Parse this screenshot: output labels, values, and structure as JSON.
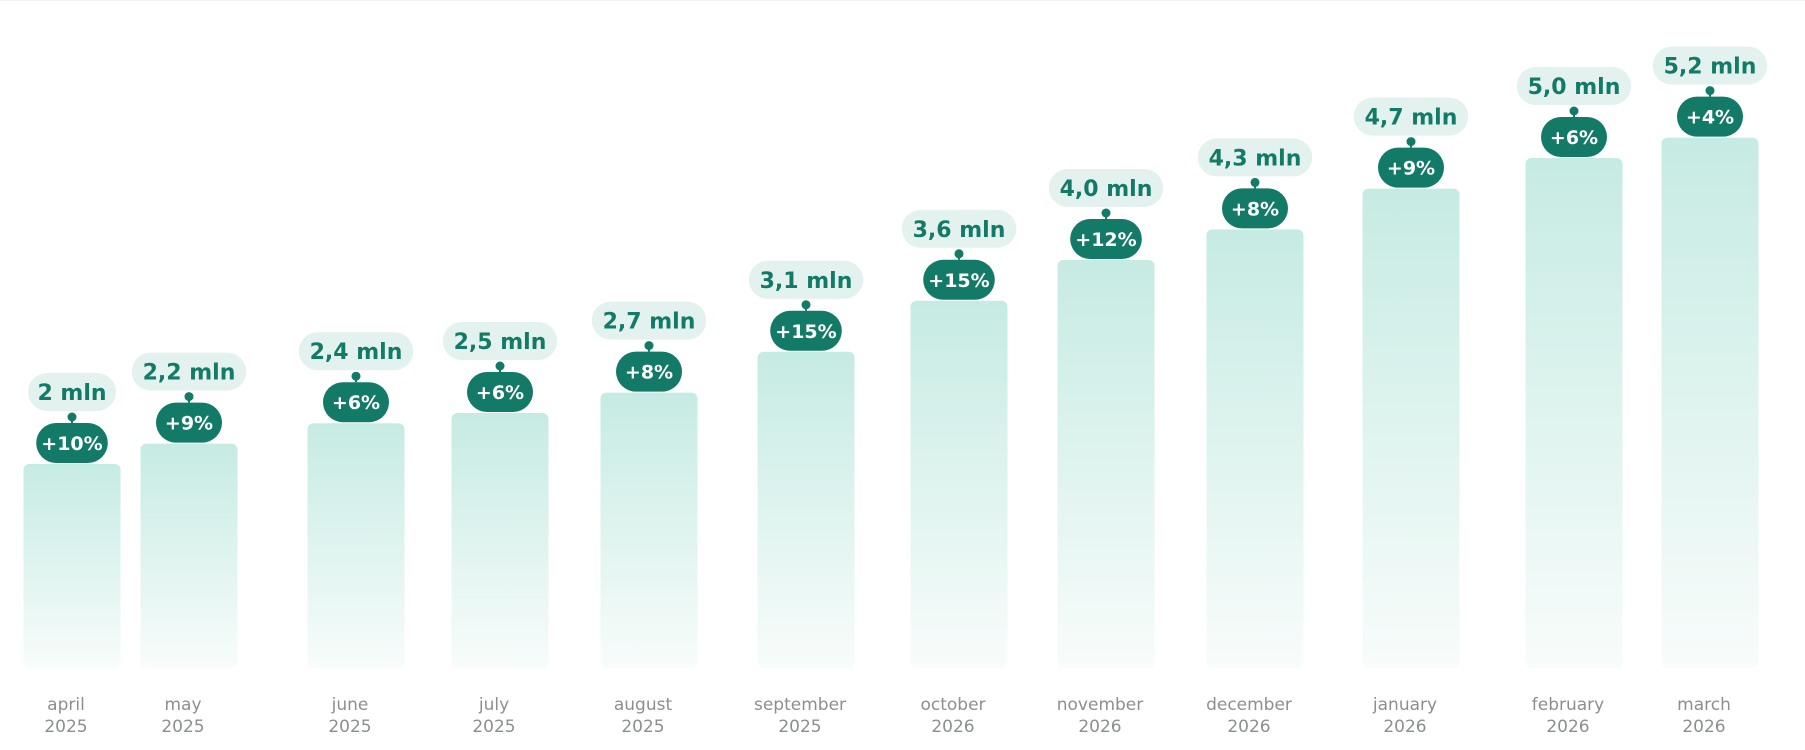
{
  "colors": {
    "bar_top": "#c6ebe3",
    "bar_bottom": "#f8fcfb",
    "badge": "#127a66",
    "badge_text": "#ffffff",
    "value_pill": "#e3f2ee",
    "value_text": "#127a66",
    "axis_text": "#8b8f92"
  },
  "chart_data": {
    "type": "bar",
    "title": "",
    "xlabel": "",
    "ylabel": "",
    "unit": "mln",
    "ylim": [
      0,
      6
    ],
    "grid": false,
    "categories": [
      {
        "month": "april",
        "year": "2025"
      },
      {
        "month": "may",
        "year": "2025"
      },
      {
        "month": "june",
        "year": "2025"
      },
      {
        "month": "july",
        "year": "2025"
      },
      {
        "month": "august",
        "year": "2025"
      },
      {
        "month": "september",
        "year": "2025"
      },
      {
        "month": "october",
        "year": "2026"
      },
      {
        "month": "november",
        "year": "2026"
      },
      {
        "month": "december",
        "year": "2026"
      },
      {
        "month": "january",
        "year": "2026"
      },
      {
        "month": "february",
        "year": "2026"
      },
      {
        "month": "march",
        "year": "2026"
      }
    ],
    "values": [
      2.0,
      2.2,
      2.4,
      2.5,
      2.7,
      3.1,
      3.6,
      4.0,
      4.3,
      4.7,
      5.0,
      5.2
    ],
    "value_labels": [
      "2 mln",
      "2,2 mln",
      "2,4 mln",
      "2,5 mln",
      "2,7 mln",
      "3,1 mln",
      "3,6 mln",
      "4,0 mln",
      "4,3 mln",
      "4,7 mln",
      "5,0 mln",
      "5,2 mln"
    ],
    "growth_labels": [
      "+10%",
      "+9%",
      "+6%",
      "+6%",
      "+8%",
      "+15%",
      "+15%",
      "+12%",
      "+8%",
      "+9%",
      "+6%",
      "+4%"
    ]
  }
}
